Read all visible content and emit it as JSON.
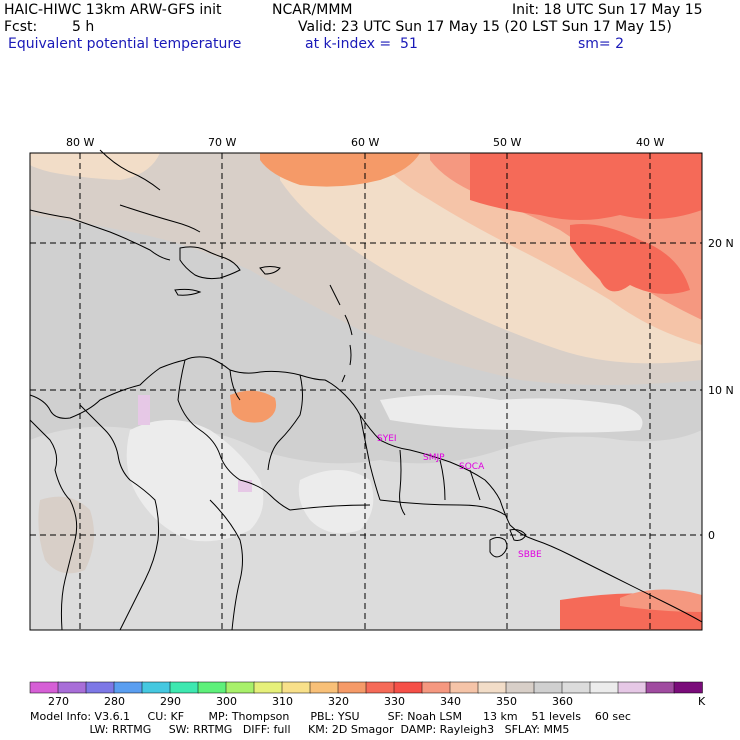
{
  "header": {
    "model": "HAIC-HIWC 13km ARW-GFS init",
    "org": "NCAR/MMM",
    "init": "Init: 18 UTC Sun 17 May 15",
    "fcst_label": "Fcst:",
    "fcst_value": "5 h",
    "valid": "Valid: 23 UTC Sun 17 May 15 (20 LST Sun 17 May 15)",
    "field": "Equivalent potential temperature",
    "level": "at k-index =  51",
    "smooth": "sm= 2"
  },
  "map": {
    "lon_labels": [
      "80 W",
      "70 W",
      "60 W",
      "50 W",
      "40 W"
    ],
    "lat_labels": [
      "20 N",
      "10 N",
      "0"
    ],
    "stations": [
      "SYEI",
      "SMJP",
      "SOCA",
      "SBBE"
    ]
  },
  "colorbar": {
    "tick_labels": [
      "270",
      "280",
      "290",
      "300",
      "310",
      "320",
      "330",
      "340",
      "350",
      "360",
      "K"
    ],
    "colors": [
      "#d65fd6",
      "#a86ed8",
      "#7d78e6",
      "#5a9ef0",
      "#45c8e0",
      "#3ee8b0",
      "#5ef07a",
      "#a8f06a",
      "#e6f07a",
      "#f8e08a",
      "#f8c078",
      "#f59a68",
      "#f56a58",
      "#f55048",
      "#f59880",
      "#f5c4a8",
      "#f2ddc8",
      "#d8cfc8",
      "#d0d0d0",
      "#dcdcdc",
      "#ececec",
      "#e6c8e6",
      "#a04ca0",
      "#7a0c7a"
    ]
  },
  "footer": {
    "line1": "Model Info: V3.6.1     CU: KF       MP: Thompson      PBL: YSU        SF: Noah LSM      13 km    51 levels    60 sec",
    "line2": "                 LW: RRTMG     SW: RRTMG   DIFF: full     KM: 2D Smagor  DAMP: Rayleigh3   SFLAY: MM5"
  }
}
